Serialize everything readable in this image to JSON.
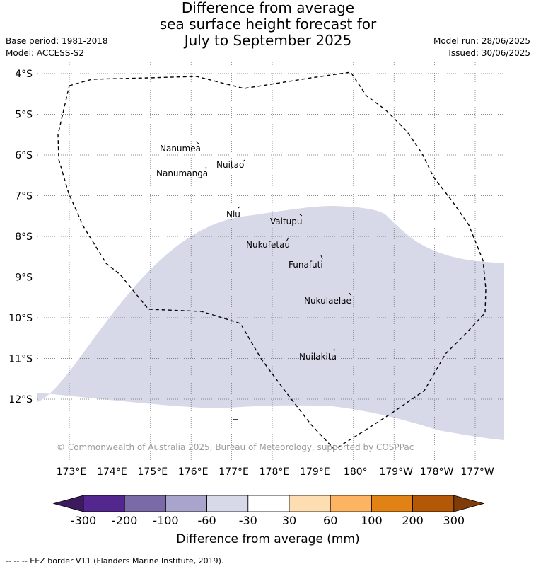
{
  "title": {
    "line1": "Difference from average",
    "line2": "sea surface height forecast for",
    "line3": "July to September 2025"
  },
  "meta": {
    "base_period": "Base period: 1981-2018",
    "model": "Model: ACCESS-S2",
    "model_run": "Model run: 28/06/2025",
    "issued": "Issued: 30/06/2025"
  },
  "map": {
    "lat_ticks": [
      "4°S",
      "5°S",
      "6°S",
      "7°S",
      "8°S",
      "9°S",
      "10°S",
      "11°S",
      "12°S"
    ],
    "lon_ticks": [
      "173°E",
      "174°E",
      "175°E",
      "176°E",
      "177°E",
      "178°E",
      "179°E",
      "180°",
      "179°W",
      "178°W",
      "177°W"
    ],
    "anomaly_fill_color": "#d7d8e8",
    "islands": [
      {
        "name": "Nanumea"
      },
      {
        "name": "Nuitao"
      },
      {
        "name": "Nanumanga"
      },
      {
        "name": "Niu"
      },
      {
        "name": "Vaitupu"
      },
      {
        "name": "Nukufetau"
      },
      {
        "name": "Funafuti"
      },
      {
        "name": "Nukulaelae"
      },
      {
        "name": "Nuilakita"
      }
    ],
    "copyright": "© Commonwealth of Australia 2025, Bureau of Meteorology, supported by COSPPac"
  },
  "colorbar": {
    "ticks": [
      "-300",
      "-200",
      "-100",
      "-60",
      "-30",
      "30",
      "60",
      "100",
      "200",
      "300"
    ],
    "colors": [
      "#3d1a5e",
      "#54278f",
      "#7b6aa8",
      "#a8a4cc",
      "#d7d8e8",
      "#ffffff",
      "#fdddb2",
      "#fdb462",
      "#e08214",
      "#b35806",
      "#7f3b08"
    ],
    "label": "Difference from average (mm)"
  },
  "footnote": "--  --  -- EEZ border V11 (Flanders Marine Institute, 2019)."
}
